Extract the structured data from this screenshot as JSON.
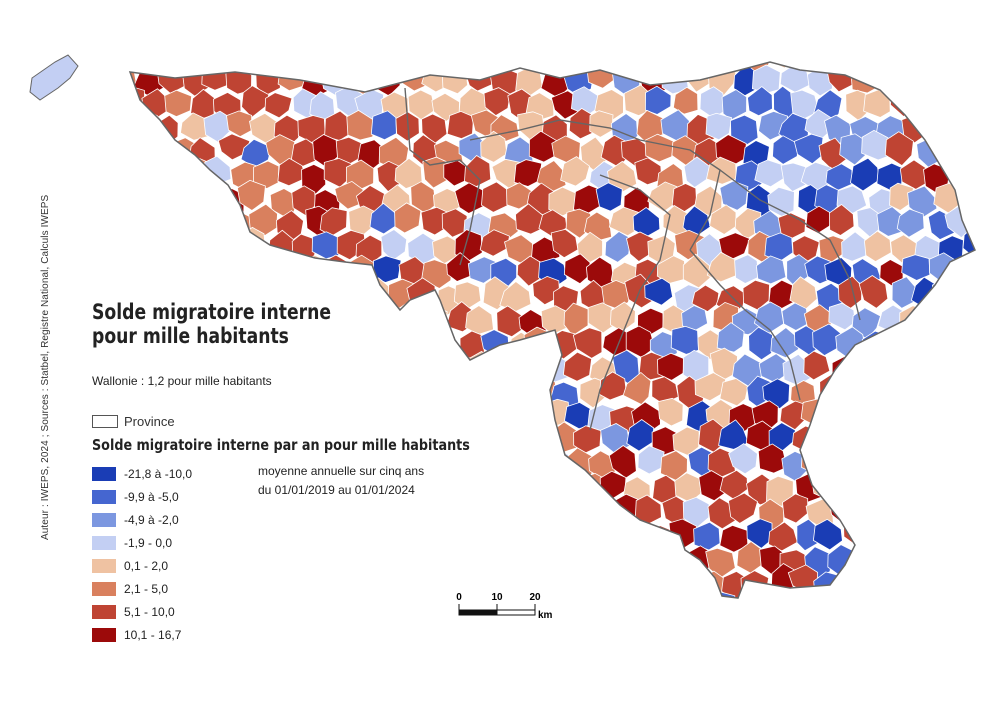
{
  "credit": "Auteur : IWEPS, 2024 ; Sources : Statbel, Registre National, Calculs IWEPS",
  "title_line1": "Solde migratoire interne",
  "title_line2": "pour mille habitants",
  "subtitle": "Wallonie : 1,2 pour mille habitants",
  "province_legend_label": "Province",
  "legend_title": "Solde migratoire interne par an pour mille habitants",
  "period_line1": "moyenne annuelle sur cinq ans",
  "period_line2": "du 01/01/2019 au 01/01/2024",
  "legend": [
    {
      "label": "-21,8 à -10,0",
      "color": "#1a3db5"
    },
    {
      "label": "-9,9 à -5,0",
      "color": "#4566d0"
    },
    {
      "label": "-4,9 à -2,0",
      "color": "#7c97e0"
    },
    {
      "label": "-1,9 - 0,0",
      "color": "#c3cff3"
    },
    {
      "label": "0,1 - 2,0",
      "color": "#efc2a2"
    },
    {
      "label": "2,1 - 5,0",
      "color": "#d9805e"
    },
    {
      "label": "5,1 - 10,0",
      "color": "#bf4433"
    },
    {
      "label": "10,1 - 16,7",
      "color": "#9c0a0a"
    }
  ],
  "scale": {
    "ticks": [
      "0",
      "10",
      "20"
    ],
    "unit": "km"
  },
  "colors": {
    "province_border": "#666666",
    "commune_border": "#ffffff"
  }
}
